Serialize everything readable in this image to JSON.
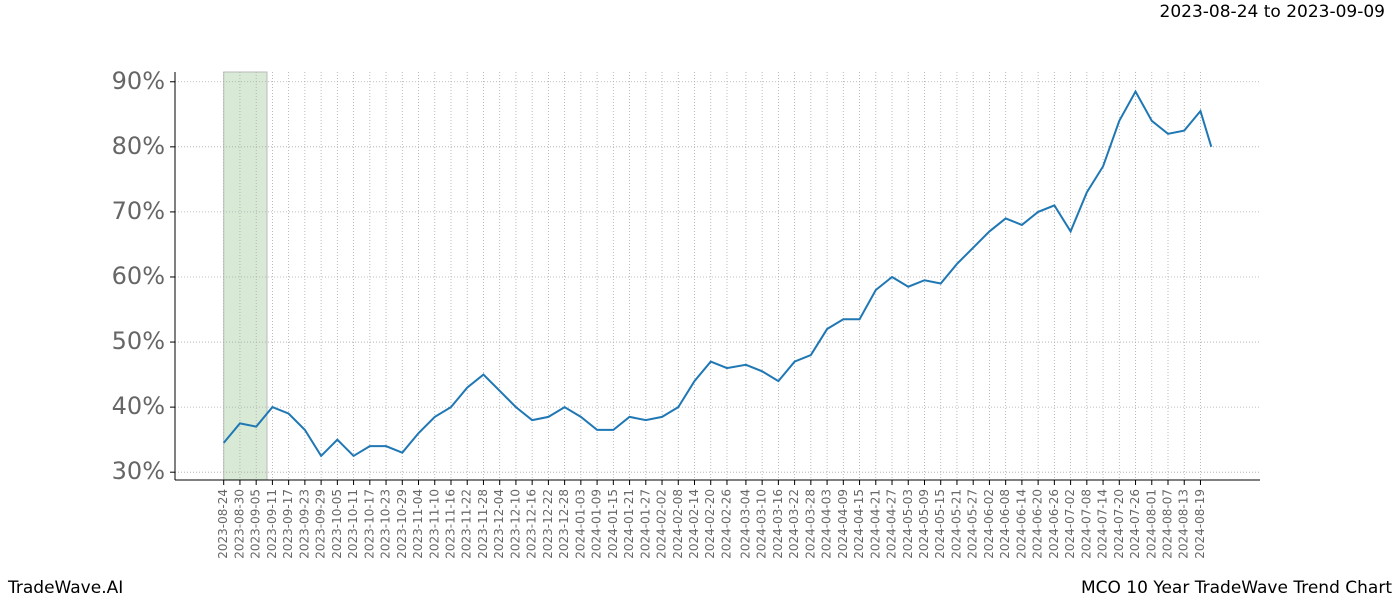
{
  "chart_data": {
    "type": "line",
    "title": "2023-08-24 to 2023-09-09",
    "footer_left": "TradeWave.AI",
    "footer_right": "MCO 10 Year TradeWave Trend Chart",
    "highlight": [
      "2023-08-24",
      "2023-09-09"
    ],
    "highlight_color": "#d8ead6",
    "grid": true,
    "x": [
      "2023-08-24",
      "2023-08-30",
      "2023-09-05",
      "2023-09-11",
      "2023-09-17",
      "2023-09-23",
      "2023-09-29",
      "2023-10-05",
      "2023-10-11",
      "2023-10-17",
      "2023-10-23",
      "2023-10-29",
      "2023-11-04",
      "2023-11-10",
      "2023-11-16",
      "2023-11-22",
      "2023-11-28",
      "2023-12-04",
      "2023-12-10",
      "2023-12-16",
      "2023-12-22",
      "2023-12-28",
      "2024-01-03",
      "2024-01-09",
      "2024-01-15",
      "2024-01-21",
      "2024-01-27",
      "2024-02-02",
      "2024-02-08",
      "2024-02-14",
      "2024-02-20",
      "2024-02-26",
      "2024-03-04",
      "2024-03-10",
      "2024-03-16",
      "2024-03-22",
      "2024-03-28",
      "2024-04-03",
      "2024-04-09",
      "2024-04-15",
      "2024-04-21",
      "2024-04-27",
      "2024-05-03",
      "2024-05-09",
      "2024-05-15",
      "2024-05-21",
      "2024-05-27",
      "2024-06-02",
      "2024-06-08",
      "2024-06-14",
      "2024-06-20",
      "2024-06-26",
      "2024-07-02",
      "2024-07-08",
      "2024-07-14",
      "2024-07-20",
      "2024-07-26",
      "2024-08-01",
      "2024-08-07",
      "2024-08-13",
      "2024-08-19",
      "2024-08-23"
    ],
    "series": [
      {
        "color": "#1f77b4",
        "values": [
          34.5,
          37.5,
          37,
          40,
          39,
          36.5,
          32.5,
          35,
          32.5,
          34,
          34,
          33,
          36,
          38.5,
          40,
          43,
          45,
          42.5,
          40,
          38,
          38.5,
          40,
          38.5,
          36.5,
          36.5,
          38.5,
          38,
          38.5,
          40,
          44,
          47,
          46,
          46.5,
          45.5,
          44,
          47,
          48,
          52,
          53.5,
          53.5,
          58,
          60,
          58.5,
          59.5,
          59,
          62,
          64.5,
          67,
          69,
          68,
          70,
          71,
          67,
          73,
          77,
          84,
          88.5,
          84,
          82,
          82.5,
          85.5,
          80
        ]
      }
    ],
    "xlim": [
      "2023-08-06",
      "2024-09-10"
    ],
    "xticks": [
      "2023-08-24",
      "2023-08-30",
      "2023-09-05",
      "2023-09-11",
      "2023-09-17",
      "2023-09-23",
      "2023-09-29",
      "2023-10-05",
      "2023-10-11",
      "2023-10-17",
      "2023-10-23",
      "2023-10-29",
      "2023-11-04",
      "2023-11-10",
      "2023-11-16",
      "2023-11-22",
      "2023-11-28",
      "2023-12-04",
      "2023-12-10",
      "2023-12-16",
      "2023-12-22",
      "2023-12-28",
      "2024-01-03",
      "2024-01-09",
      "2024-01-15",
      "2024-01-21",
      "2024-01-27",
      "2024-02-02",
      "2024-02-08",
      "2024-02-14",
      "2024-02-20",
      "2024-02-26",
      "2024-03-04",
      "2024-03-10",
      "2024-03-16",
      "2024-03-22",
      "2024-03-28",
      "2024-04-03",
      "2024-04-09",
      "2024-04-15",
      "2024-04-21",
      "2024-04-27",
      "2024-05-03",
      "2024-05-09",
      "2024-05-15",
      "2024-05-21",
      "2024-05-27",
      "2024-06-02",
      "2024-06-08",
      "2024-06-14",
      "2024-06-20",
      "2024-06-26",
      "2024-07-02",
      "2024-07-08",
      "2024-07-14",
      "2024-07-20",
      "2024-07-26",
      "2024-08-01",
      "2024-08-07",
      "2024-08-13",
      "2024-08-19"
    ],
    "ylim": [
      28.8,
      91.5
    ],
    "yticks": [
      {
        "value": 30,
        "label": "30%"
      },
      {
        "value": 40,
        "label": "40%"
      },
      {
        "value": 50,
        "label": "50%"
      },
      {
        "value": 60,
        "label": "60%"
      },
      {
        "value": 70,
        "label": "70%"
      },
      {
        "value": 80,
        "label": "80%"
      },
      {
        "value": 90,
        "label": "90%"
      }
    ]
  }
}
